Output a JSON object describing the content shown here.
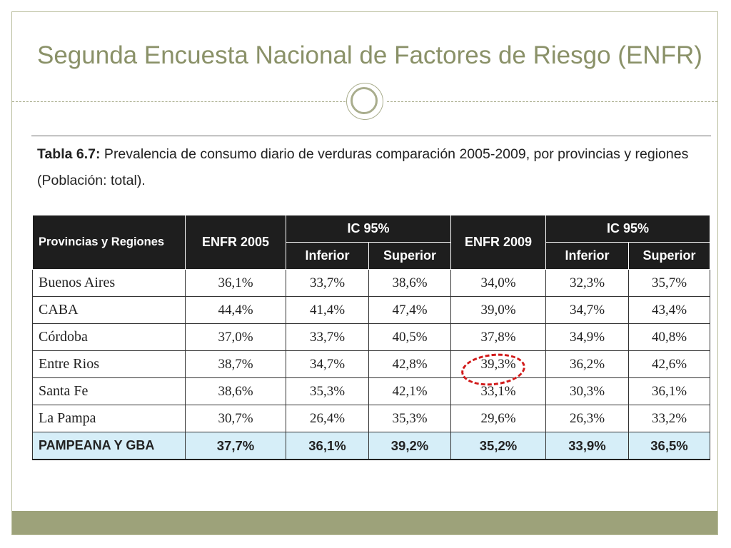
{
  "slide": {
    "title": "Segunda Encuesta Nacional de Factores de Riesgo (ENFR)"
  },
  "caption": {
    "label": "Tabla 6.7:",
    "text": " Prevalencia de consumo diario de verduras comparación 2005-2009, por provincias y regiones (Población: total)."
  },
  "table": {
    "headers": {
      "region": "Provincias y Regiones",
      "enfr2005": "ENFR 2005",
      "ic95_a": "IC 95%",
      "enfr2009": "ENFR 2009",
      "ic95_b": "IC 95%",
      "inferior_a": "Inferior",
      "superior_a": "Superior",
      "inferior_b": "Inferior",
      "superior_b": "Superior"
    },
    "rows": [
      {
        "name": "Buenos Aires",
        "v2005": "36,1%",
        "inf2005": "33,7%",
        "sup2005": "38,6%",
        "v2009": "34,0%",
        "inf2009": "32,3%",
        "sup2009": "35,7%"
      },
      {
        "name": "CABA",
        "v2005": "44,4%",
        "inf2005": "41,4%",
        "sup2005": "47,4%",
        "v2009": "39,0%",
        "inf2009": "34,7%",
        "sup2009": "43,4%"
      },
      {
        "name": "Córdoba",
        "v2005": "37,0%",
        "inf2005": "33,7%",
        "sup2005": "40,5%",
        "v2009": "37,8%",
        "inf2009": "34,9%",
        "sup2009": "40,8%"
      },
      {
        "name": "Entre Rios",
        "v2005": "38,7%",
        "inf2005": "34,7%",
        "sup2005": "42,8%",
        "v2009": "39,3%",
        "inf2009": "36,2%",
        "sup2009": "42,6%"
      },
      {
        "name": "Santa Fe",
        "v2005": "38,6%",
        "inf2005": "35,3%",
        "sup2005": "42,1%",
        "v2009": "33,1%",
        "inf2009": "30,3%",
        "sup2009": "36,1%"
      },
      {
        "name": "La Pampa",
        "v2005": "30,7%",
        "inf2005": "26,4%",
        "sup2005": "35,3%",
        "v2009": "29,6%",
        "inf2009": "26,3%",
        "sup2009": "33,2%"
      }
    ],
    "total": {
      "name": "PAMPEANA Y GBA",
      "v2005": "37,7%",
      "inf2005": "36,1%",
      "sup2005": "39,2%",
      "v2009": "35,2%",
      "inf2009": "33,9%",
      "sup2009": "36,5%"
    },
    "highlight_color": "#d11a1a",
    "total_row_color": "#d6eef8"
  }
}
